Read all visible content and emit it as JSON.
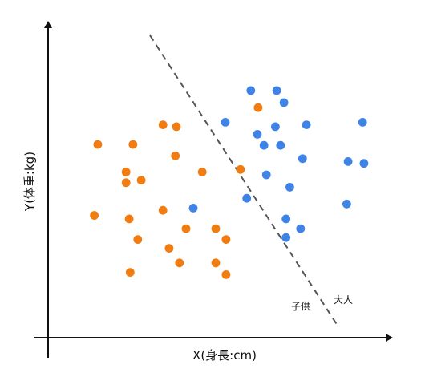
{
  "chart_data": {
    "type": "scatter",
    "xlabel": "X(身長:cm)",
    "ylabel": "Y(体重:kg)",
    "xlim": [
      0,
      100
    ],
    "ylim": [
      0,
      100
    ],
    "grid": false,
    "colors": {
      "axis": "#111111",
      "boundary": "#555555",
      "series_1": "#f07c12",
      "series_2": "#3f83e6"
    },
    "series": [
      {
        "values": [
          [
            14.4,
            61.0
          ],
          [
            24.6,
            61.0
          ],
          [
            33.3,
            67.2
          ],
          [
            37.2,
            66.6
          ],
          [
            36.9,
            57.4
          ],
          [
            22.6,
            52.3
          ],
          [
            22.6,
            48.9
          ],
          [
            27.0,
            49.7
          ],
          [
            44.7,
            52.3
          ],
          [
            55.8,
            53.1
          ],
          [
            13.4,
            38.6
          ],
          [
            23.5,
            37.5
          ],
          [
            33.3,
            40.2
          ],
          [
            40.0,
            34.4
          ],
          [
            48.6,
            34.4
          ],
          [
            51.6,
            31.0
          ],
          [
            26.0,
            31.0
          ],
          [
            35.1,
            28.2
          ],
          [
            38.1,
            23.6
          ],
          [
            48.6,
            23.6
          ],
          [
            51.6,
            19.9
          ],
          [
            23.8,
            20.6
          ],
          [
            60.9,
            72.6
          ]
        ]
      },
      {
        "values": [
          [
            58.8,
            78.0
          ],
          [
            66.3,
            78.0
          ],
          [
            68.4,
            74.2
          ],
          [
            51.4,
            68.0
          ],
          [
            60.7,
            64.2
          ],
          [
            65.9,
            66.6
          ],
          [
            74.9,
            67.2
          ],
          [
            91.2,
            68.0
          ],
          [
            62.6,
            60.7
          ],
          [
            67.4,
            60.7
          ],
          [
            73.8,
            56.5
          ],
          [
            87.0,
            55.6
          ],
          [
            91.6,
            55.0
          ],
          [
            63.3,
            51.4
          ],
          [
            70.1,
            47.5
          ],
          [
            57.6,
            44.0
          ],
          [
            86.6,
            42.2
          ],
          [
            69.0,
            37.5
          ],
          [
            73.2,
            34.4
          ],
          [
            69.0,
            31.6
          ],
          [
            42.1,
            40.9
          ]
        ]
      }
    ],
    "annotations": {
      "adult_label": "大人",
      "child_label": "子供"
    }
  }
}
